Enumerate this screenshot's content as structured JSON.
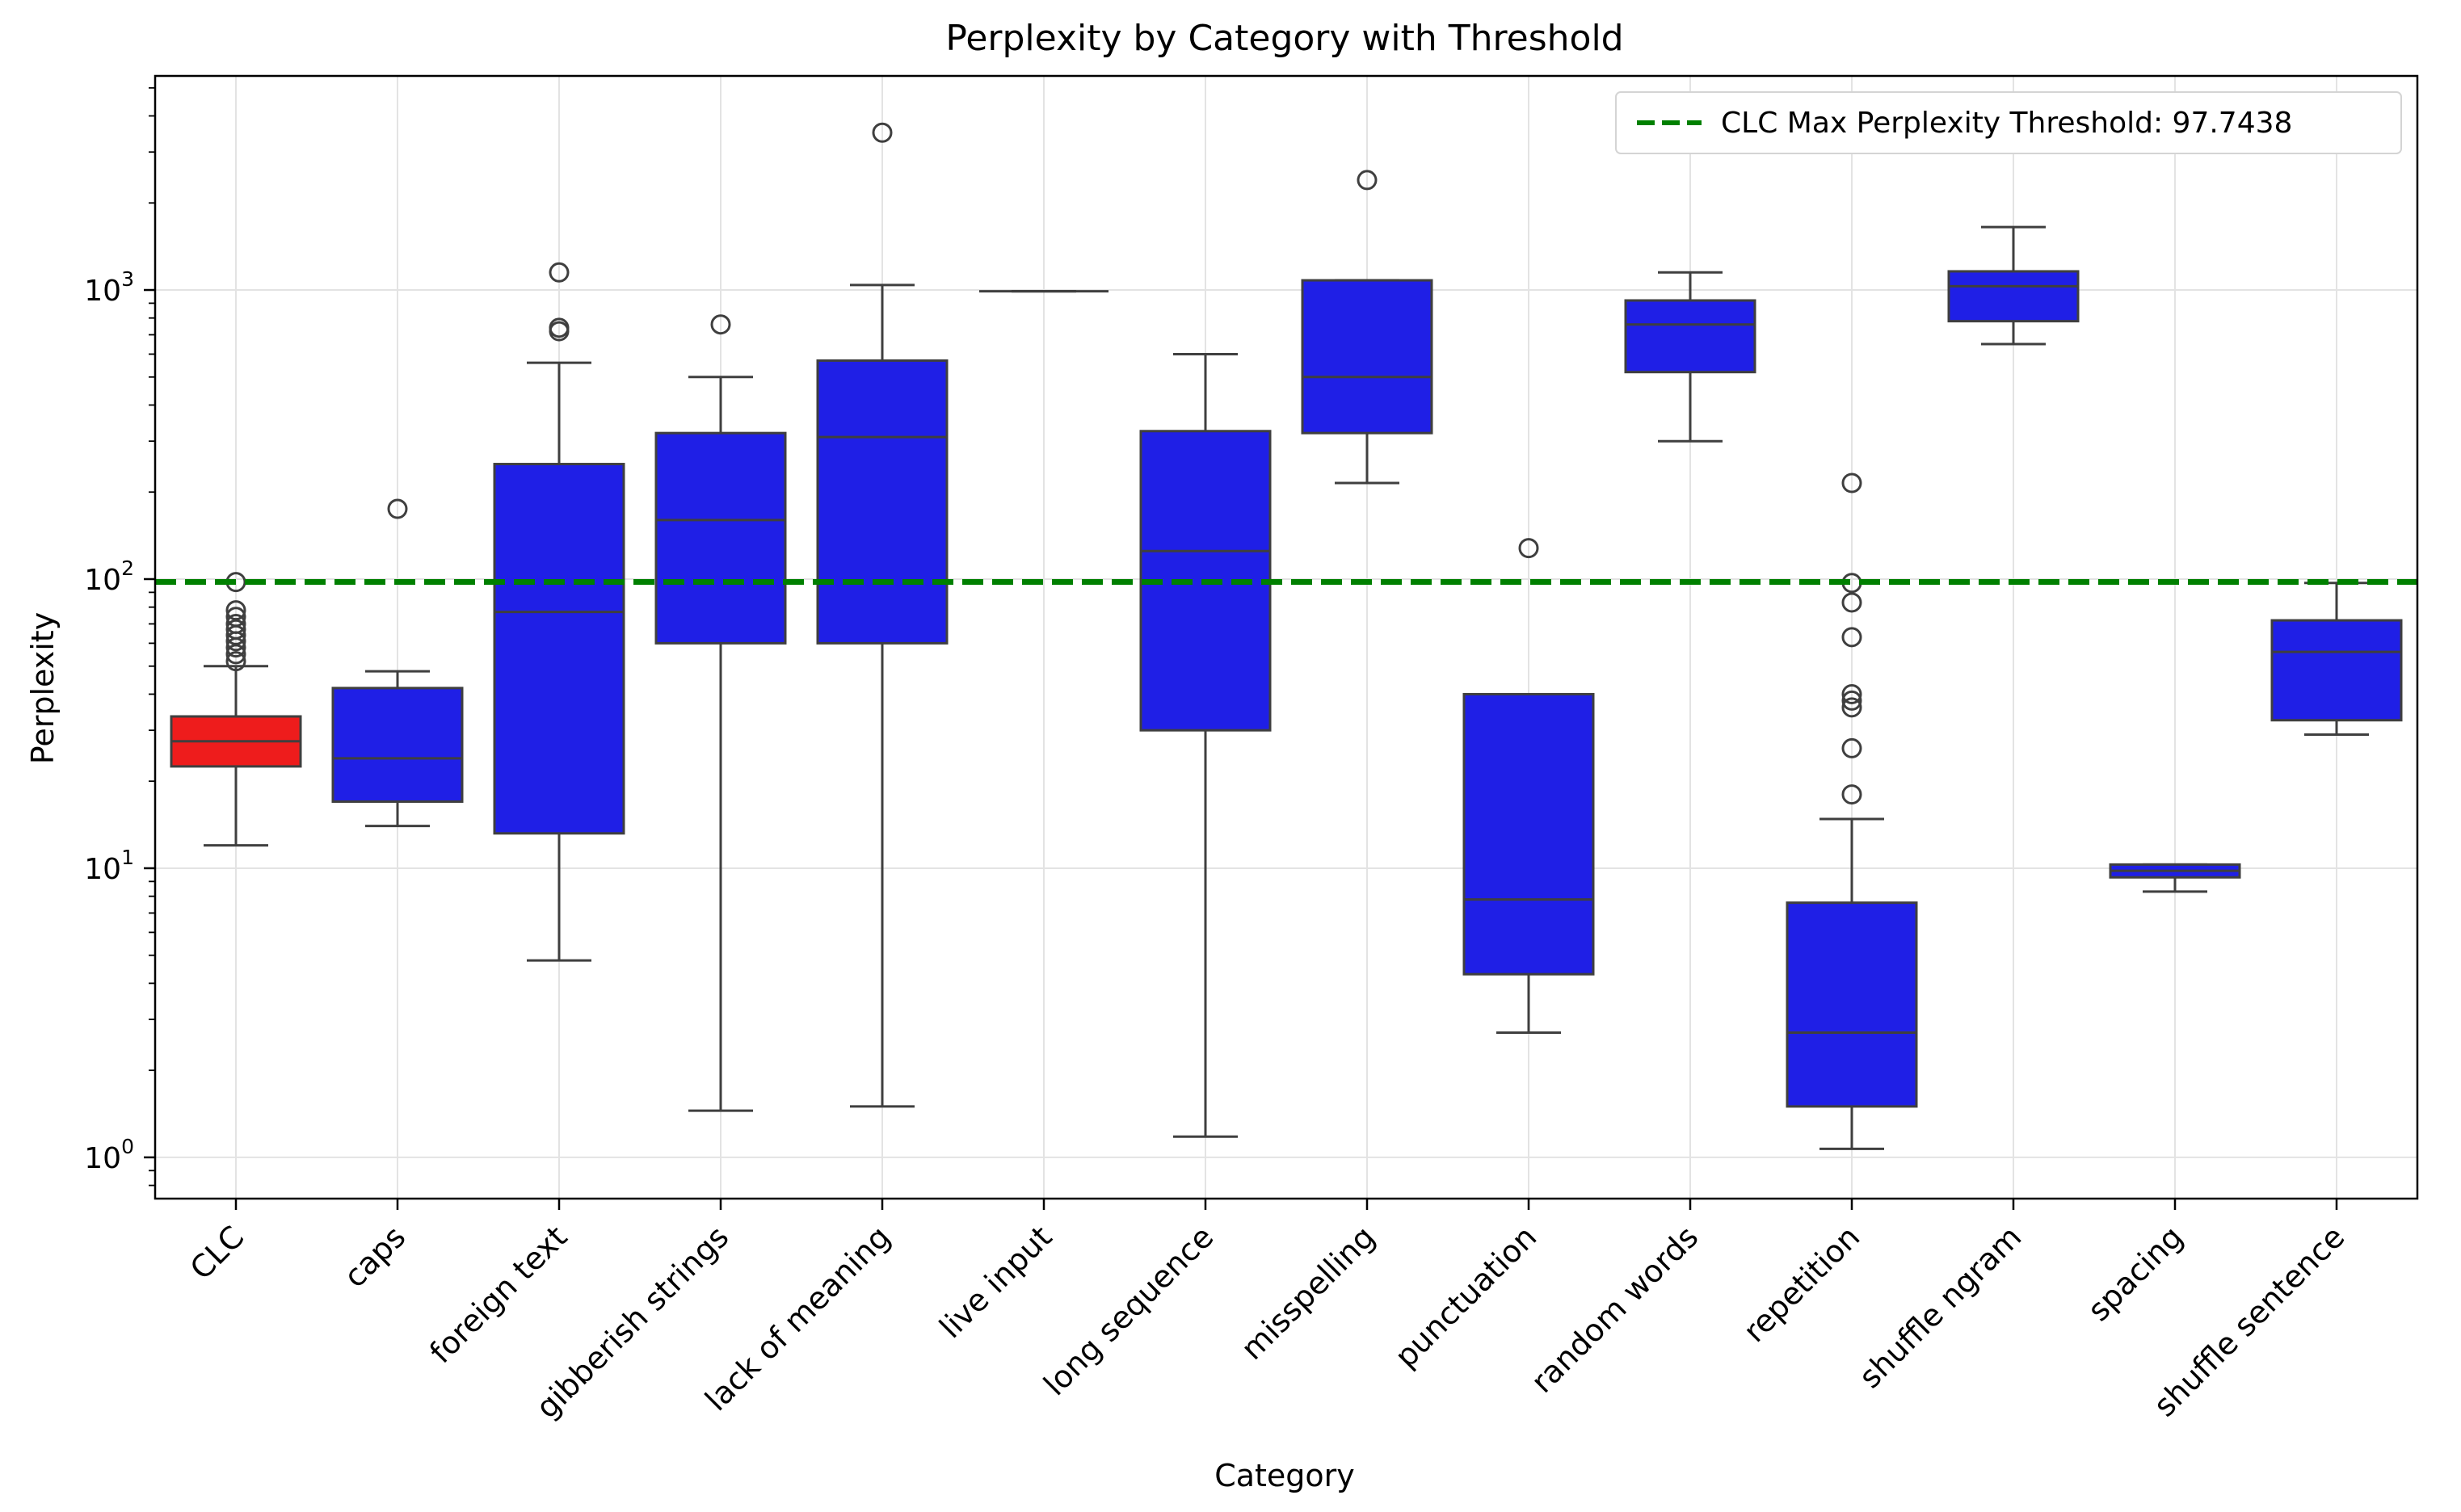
{
  "chart_data": {
    "type": "box",
    "title": "Perplexity by Category with Threshold",
    "xlabel": "Category",
    "ylabel": "Perplexity",
    "yscale": "log",
    "ylim": [
      0.72,
      5500
    ],
    "yticks": [
      {
        "value": 1,
        "base": "10",
        "exp": "0"
      },
      {
        "value": 10,
        "base": "10",
        "exp": "1"
      },
      {
        "value": 100,
        "base": "10",
        "exp": "2"
      },
      {
        "value": 1000,
        "base": "10",
        "exp": "3"
      }
    ],
    "grid": true,
    "legend": {
      "position": "top-right",
      "label": "CLC Max Perplexity Threshold: 97.7438"
    },
    "threshold": {
      "value": 97.7438,
      "color": "#008000",
      "style": "dashed"
    },
    "colors": {
      "highlight": "#ee1c1c",
      "default": "#1f1fe6",
      "line": "#3f3f3f"
    },
    "categories": [
      "CLC",
      "caps",
      "foreign text",
      "gibberish strings",
      "lack of meaning",
      "live input",
      "long sequence",
      "misspelling",
      "punctuation",
      "random words",
      "repetition",
      "shuffle ngram",
      "spacing",
      "shuffle sentence"
    ],
    "boxes": [
      {
        "category": "CLC",
        "whislo": 12,
        "q1": 22.5,
        "med": 27.5,
        "q3": 33.5,
        "whishi": 50,
        "fliers": [
          52,
          55,
          58,
          61,
          64,
          67,
          70,
          74,
          78,
          97.7
        ],
        "highlight": true
      },
      {
        "category": "caps",
        "whislo": 14,
        "q1": 17,
        "med": 24,
        "q3": 42,
        "whishi": 48,
        "fliers": [
          175
        ]
      },
      {
        "category": "foreign text",
        "whislo": 4.8,
        "q1": 13.2,
        "med": 77,
        "q3": 250,
        "whishi": 560,
        "fliers": [
          720,
          740,
          1150
        ]
      },
      {
        "category": "gibberish strings",
        "whislo": 1.45,
        "q1": 60,
        "med": 160,
        "q3": 320,
        "whishi": 500,
        "fliers": [
          760
        ]
      },
      {
        "category": "lack of meaning",
        "whislo": 1.5,
        "q1": 60,
        "med": 310,
        "q3": 570,
        "whishi": 1040,
        "fliers": [
          3500
        ]
      },
      {
        "category": "live input",
        "whislo": 990,
        "q1": 990,
        "med": 990,
        "q3": 990,
        "whishi": 990,
        "fliers": []
      },
      {
        "category": "long sequence",
        "whislo": 1.18,
        "q1": 30,
        "med": 125,
        "q3": 325,
        "whishi": 600,
        "fliers": []
      },
      {
        "category": "misspelling",
        "whislo": 215,
        "q1": 320,
        "med": 500,
        "q3": 1080,
        "whishi": 1080,
        "fliers": [
          2400
        ]
      },
      {
        "category": "punctuation",
        "whislo": 2.7,
        "q1": 4.3,
        "med": 7.8,
        "q3": 40,
        "whishi": 40,
        "fliers": [
          128
        ]
      },
      {
        "category": "random words",
        "whislo": 300,
        "q1": 520,
        "med": 760,
        "q3": 920,
        "whishi": 1150,
        "fliers": []
      },
      {
        "category": "repetition",
        "whislo": 1.07,
        "q1": 1.5,
        "med": 2.7,
        "q3": 7.6,
        "whishi": 14.8,
        "fliers": [
          18,
          26,
          36,
          38,
          40,
          63,
          83,
          97,
          215
        ]
      },
      {
        "category": "shuffle ngram",
        "whislo": 650,
        "q1": 780,
        "med": 1030,
        "q3": 1160,
        "whishi": 1650,
        "fliers": []
      },
      {
        "category": "spacing",
        "whislo": 8.3,
        "q1": 9.3,
        "med": 9.8,
        "q3": 10.3,
        "whishi": 10.3,
        "fliers": []
      },
      {
        "category": "shuffle sentence",
        "whislo": 29,
        "q1": 32.5,
        "med": 56,
        "q3": 72,
        "whishi": 97,
        "fliers": []
      }
    ]
  }
}
